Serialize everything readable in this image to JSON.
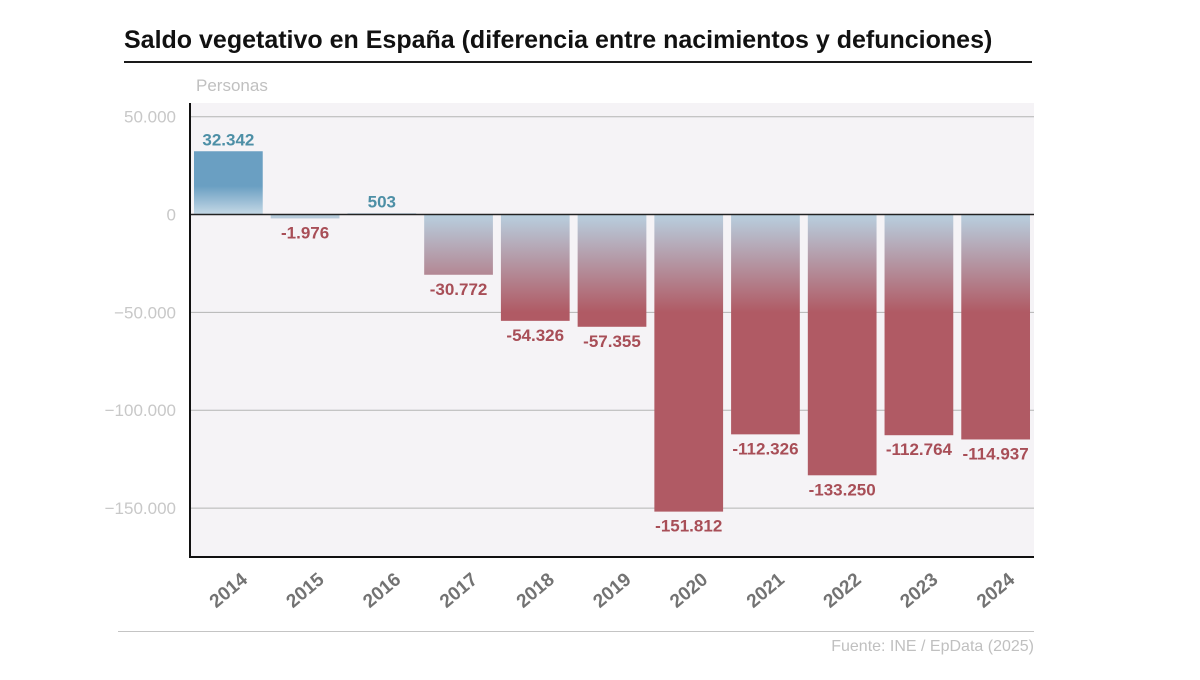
{
  "colors": {
    "positive": "#6a9fc2",
    "positive_light": "#c6d9e6",
    "negative": "#b05a64",
    "negative_top": "#b8cfdf",
    "positive_label": "#4d8fa6",
    "negative_label": "#a84e57",
    "plot_bg": "#f5f3f6",
    "grid": "#b4b4b4",
    "axis_tick_label": "#c8c8c8",
    "category_label": "#737373"
  },
  "chart_data": {
    "type": "bar",
    "title": "Saldo vegetativo en España (diferencia entre nacimientos y defunciones)",
    "ylabel": "Personas",
    "categories": [
      "2014",
      "2015",
      "2016",
      "2017",
      "2018",
      "2019",
      "2020",
      "2021",
      "2022",
      "2023",
      "2024"
    ],
    "values": [
      32342,
      -1976,
      503,
      -30772,
      -54326,
      -57355,
      -151812,
      -112326,
      -133250,
      -112764,
      -114937
    ],
    "value_labels": [
      "32.342",
      "-1.976",
      "503",
      "-30.772",
      "-54.326",
      "-57.355",
      "-151.812",
      "-112.326",
      "-133.250",
      "-112.764",
      "-114.937"
    ],
    "yticks": [
      50000,
      0,
      -50000,
      -100000,
      -150000
    ],
    "ytick_labels": [
      "50.000",
      "0",
      "−50.000",
      "−100.000",
      "−150.000"
    ],
    "ylim": [
      -175000,
      57000
    ],
    "grid": true,
    "legend": "none",
    "source": "Fuente: INE / EpData (2025)"
  }
}
